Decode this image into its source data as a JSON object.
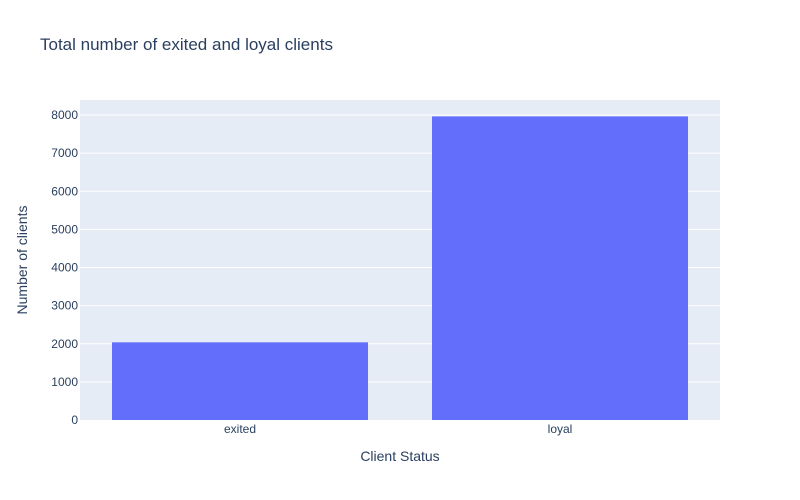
{
  "chart_data": {
    "type": "bar",
    "title": "Total number of exited and loyal clients",
    "xlabel": "Client Status",
    "ylabel": "Number of clients",
    "categories": [
      "exited",
      "loyal"
    ],
    "values": [
      2037,
      7963
    ],
    "ylim": [
      0,
      8000
    ],
    "yticks": [
      0,
      1000,
      2000,
      3000,
      4000,
      5000,
      6000,
      7000,
      8000
    ],
    "ytick_labels": [
      "0",
      "1000",
      "2000",
      "3000",
      "4000",
      "5000",
      "6000",
      "7000",
      "8000"
    ],
    "grid": true,
    "legend": "none",
    "colors": {
      "bar": "#636efa",
      "plot_bg": "#e5ecf6",
      "grid": "#ffffff",
      "text": "#2a3f5f"
    }
  }
}
